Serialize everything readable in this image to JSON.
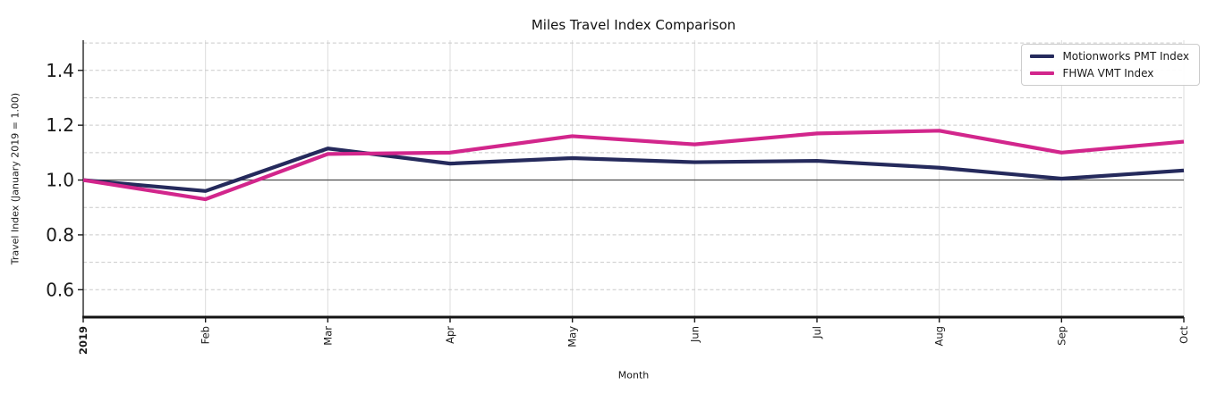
{
  "chart_data": {
    "type": "line",
    "title": "Miles Travel Index Comparison",
    "xlabel": "Month",
    "ylabel": "Travel Index (January 2019 = 1.00)",
    "x_tick_labels": [
      "2019",
      "Feb",
      "Mar",
      "Apr",
      "May",
      "Jun",
      "Jul",
      "Aug",
      "Sep",
      "Oct"
    ],
    "x_tick_bold_labels": [
      "2019"
    ],
    "y_tick_values": [
      0.6,
      0.8,
      1.0,
      1.2,
      1.4
    ],
    "y_tick_labels": [
      "0.6",
      "0.8",
      "1.0",
      "1.2",
      "1.4"
    ],
    "ylim": [
      0.5,
      1.51
    ],
    "gridlines_y": [
      0.6,
      0.7,
      0.8,
      0.9,
      1.1,
      1.2,
      1.3,
      1.4,
      1.5
    ],
    "reference_line_y": 1.0,
    "grid": true,
    "legend_position": "upper right",
    "series": [
      {
        "name": "Motionworks PMT Index",
        "color": "#252a5c",
        "values": [
          1.0,
          0.96,
          1.115,
          1.06,
          1.08,
          1.065,
          1.07,
          1.045,
          1.005,
          1.035
        ]
      },
      {
        "name": "FHWA VMT Index",
        "color": "#d2268c",
        "values": [
          1.0,
          0.93,
          1.095,
          1.1,
          1.16,
          1.13,
          1.17,
          1.18,
          1.1,
          1.14
        ]
      }
    ],
    "colors": {
      "spine": "#262626",
      "bottom_spine": "#141414",
      "gridline_dashed": "#c9c9c9",
      "gridline_vertical": "#dcdcdc",
      "reference_line": "#4d4d4d",
      "tick_text": "#1a1a1a"
    }
  }
}
